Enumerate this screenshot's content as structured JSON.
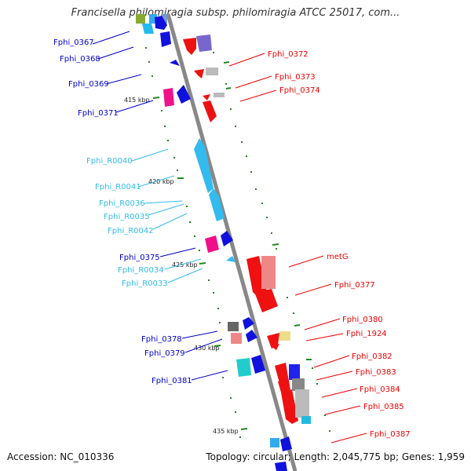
{
  "title": "Francisella philomiragia subsp. philomiragia ATCC 25017, com...",
  "accession": "Accession: NC_010336",
  "topology": "Topology: circular; Length: 2,045,775 bp; Genes: 1,959",
  "ticks": [
    "415 kbp",
    "420 kbp",
    "425 kbp",
    "430 kbp",
    "435 kbp"
  ],
  "colors": {
    "forward": "#0000cc",
    "reverse": "#ee0000",
    "rna": "#33bbee",
    "backbone": "#888888",
    "tick": "#228822"
  },
  "left_labels": [
    {
      "text": "Fphi_0367",
      "type": "forward"
    },
    {
      "text": "Fphi_0368",
      "type": "forward"
    },
    {
      "text": "Fphi_0369",
      "type": "forward"
    },
    {
      "text": "Fphi_0371",
      "type": "forward"
    },
    {
      "text": "Fphi_R0040",
      "type": "rna"
    },
    {
      "text": "Fphi_R0041",
      "type": "rna"
    },
    {
      "text": "Fphi_R0036",
      "type": "rna"
    },
    {
      "text": "Fphi_R0035",
      "type": "rna"
    },
    {
      "text": "Fphi_R0042",
      "type": "rna"
    },
    {
      "text": "Fphi_0375",
      "type": "forward"
    },
    {
      "text": "Fphi_R0034",
      "type": "rna"
    },
    {
      "text": "Fphi_R0033",
      "type": "rna"
    },
    {
      "text": "Fphi_0378",
      "type": "forward"
    },
    {
      "text": "Fphi_0379",
      "type": "forward"
    },
    {
      "text": "Fphi_0381",
      "type": "forward"
    }
  ],
  "right_labels": [
    {
      "text": "Fphi_0372",
      "type": "reverse"
    },
    {
      "text": "Fphi_0373",
      "type": "reverse"
    },
    {
      "text": "Fphi_0374",
      "type": "reverse"
    },
    {
      "text": "metG",
      "type": "reverse"
    },
    {
      "text": "Fphi_0377",
      "type": "reverse"
    },
    {
      "text": "Fphi_0380",
      "type": "reverse"
    },
    {
      "text": "Fphi_1924",
      "type": "reverse"
    },
    {
      "text": "Fphi_0382",
      "type": "reverse"
    },
    {
      "text": "Fphi_0383",
      "type": "reverse"
    },
    {
      "text": "Fphi_0384",
      "type": "reverse"
    },
    {
      "text": "Fphi_0385",
      "type": "reverse"
    },
    {
      "text": "Fphi_0387",
      "type": "reverse"
    }
  ]
}
